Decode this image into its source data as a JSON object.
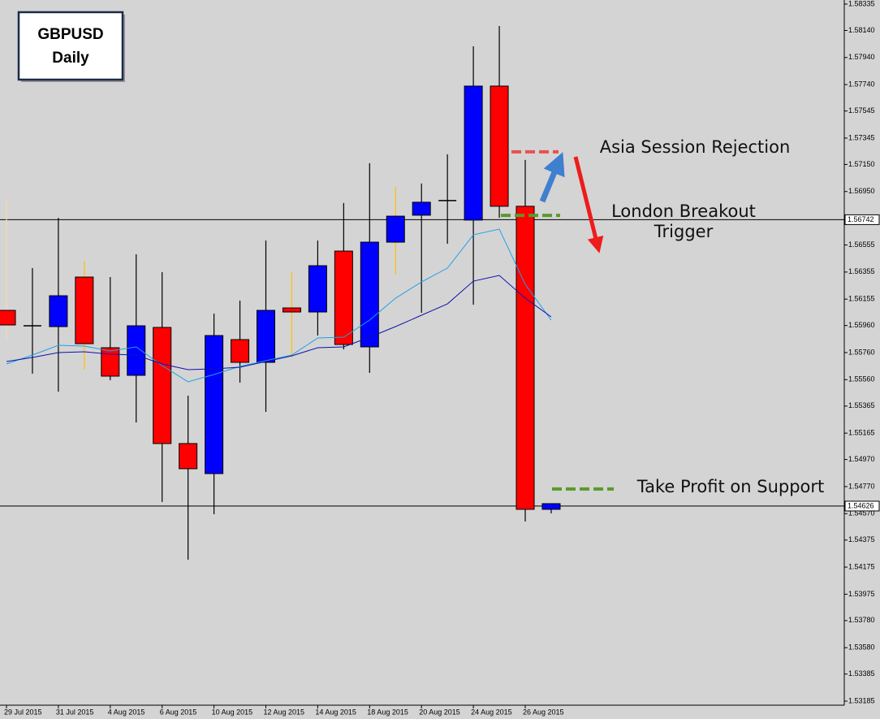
{
  "chart_data": {
    "type": "candlestick",
    "title": [
      "GBPUSD",
      "Daily"
    ],
    "categories": [
      "29 Jul 2015",
      null,
      "31 Jul 2015",
      null,
      "4 Aug 2015",
      null,
      "6 Aug 2015",
      null,
      "10 Aug 2015",
      null,
      "12 Aug 2015",
      null,
      "14 Aug 2015",
      null,
      "18 Aug 2015",
      null,
      "20 Aug 2015",
      null,
      "24 Aug 2015",
      null,
      "26 Aug 2015",
      null
    ],
    "open": [
      1.56072,
      1.55958,
      1.55952,
      1.56318,
      1.55796,
      1.55592,
      1.55946,
      1.55088,
      1.54866,
      1.55856,
      1.55688,
      1.5609,
      1.5606,
      1.5651,
      1.55802,
      1.56576,
      1.56775,
      1.56883,
      1.56739,
      1.57729,
      1.56841,
      1.54602
    ],
    "high": [
      1.56895,
      1.56384,
      1.56756,
      1.56438,
      1.56318,
      1.56486,
      1.56354,
      1.55442,
      1.56048,
      1.56144,
      1.56588,
      1.56354,
      1.56588,
      1.56865,
      1.57159,
      1.56985,
      1.57009,
      1.57225,
      1.58023,
      1.58173,
      1.57183,
      1.54644
    ],
    "low": [
      1.55856,
      1.55604,
      1.55472,
      1.55634,
      1.55556,
      1.55244,
      1.54656,
      1.5423,
      1.54566,
      1.55538,
      1.55322,
      1.55724,
      1.55886,
      1.55784,
      1.5561,
      1.56336,
      1.56054,
      1.56564,
      1.56114,
      1.56756,
      1.54512,
      1.54572
    ],
    "close": [
      1.55964,
      1.55958,
      1.5618,
      1.55826,
      1.55586,
      1.55958,
      1.55088,
      1.54902,
      1.55886,
      1.55688,
      1.56072,
      1.5606,
      1.56402,
      1.5582,
      1.56576,
      1.56768,
      1.56871,
      1.56883,
      1.57729,
      1.56841,
      1.54602,
      1.54644
    ],
    "colors": {
      "up": "#0000ff",
      "down": "#ff0000",
      "doji": "#000000"
    },
    "wick_colors": [
      "#f5d9b0",
      "#000000",
      "#000000",
      "#ffc000",
      "#000000",
      "#000000",
      "#000000",
      "#000000",
      "#000000",
      "#000000",
      "#000000",
      "#ffc000",
      "#000000",
      "#000000",
      "#000000",
      "#ffc000",
      "#000000",
      "#000000",
      "#000000",
      "#000000",
      "#000000",
      "#000000"
    ],
    "series": [
      {
        "color": "#1fa0e8",
        "values": [
          1.55676,
          1.55742,
          1.55814,
          1.55808,
          1.55772,
          1.55802,
          1.55664,
          1.55544,
          1.55598,
          1.55658,
          1.557,
          1.55742,
          1.55868,
          1.55874,
          1.56,
          1.56162,
          1.56282,
          1.56384,
          1.5663,
          1.56672,
          1.56264,
          1.56
        ]
      },
      {
        "color": "#1010b0",
        "values": [
          1.55694,
          1.55724,
          1.5576,
          1.55766,
          1.55748,
          1.55742,
          1.55676,
          1.55634,
          1.5564,
          1.55652,
          1.55694,
          1.55736,
          1.55796,
          1.55802,
          1.55874,
          1.55952,
          1.56036,
          1.5612,
          1.56288,
          1.5633,
          1.56162,
          1.56024
        ]
      }
    ],
    "ylim": [
      1.53155,
      1.58365
    ],
    "yticks": [
      1.58335,
      {
        "value": 1.5814,
        "label": "1.58140"
      },
      {
        "value": 1.5794,
        "label": "1.57940"
      },
      {
        "value": 1.5774,
        "label": "1.57740"
      },
      1.57545,
      1.57345,
      {
        "value": 1.5715,
        "label": "1.57150"
      },
      {
        "value": 1.5695,
        "label": "1.56950"
      },
      1.56555,
      1.56355,
      1.56155,
      {
        "value": 1.5596,
        "label": "1.55960"
      },
      {
        "value": 1.5576,
        "label": "1.55760"
      },
      {
        "value": 1.5556,
        "label": "1.55560"
      },
      1.55365,
      1.55165,
      {
        "value": 1.5497,
        "label": "1.54970"
      },
      {
        "value": 1.5477,
        "label": "1.54770"
      },
      {
        "value": 1.5457,
        "label": "1.54570"
      },
      1.54375,
      1.54175,
      1.53975,
      {
        "value": 1.5378,
        "label": "1.53780"
      },
      {
        "value": 1.5358,
        "label": "1.53580"
      },
      1.53385,
      1.53185
    ],
    "price_lines": [
      1.56742,
      1.54626
    ],
    "levels": [
      {
        "value": 1.57243,
        "color": "#e85050"
      },
      {
        "value": 1.56774,
        "color": "#5a9a2a"
      },
      {
        "value": 1.54752,
        "color": "#5a9a2a"
      }
    ],
    "annotations": [
      "Asia Session Rejection",
      "London Breakout",
      "Trigger",
      "Take Profit on Support"
    ]
  }
}
